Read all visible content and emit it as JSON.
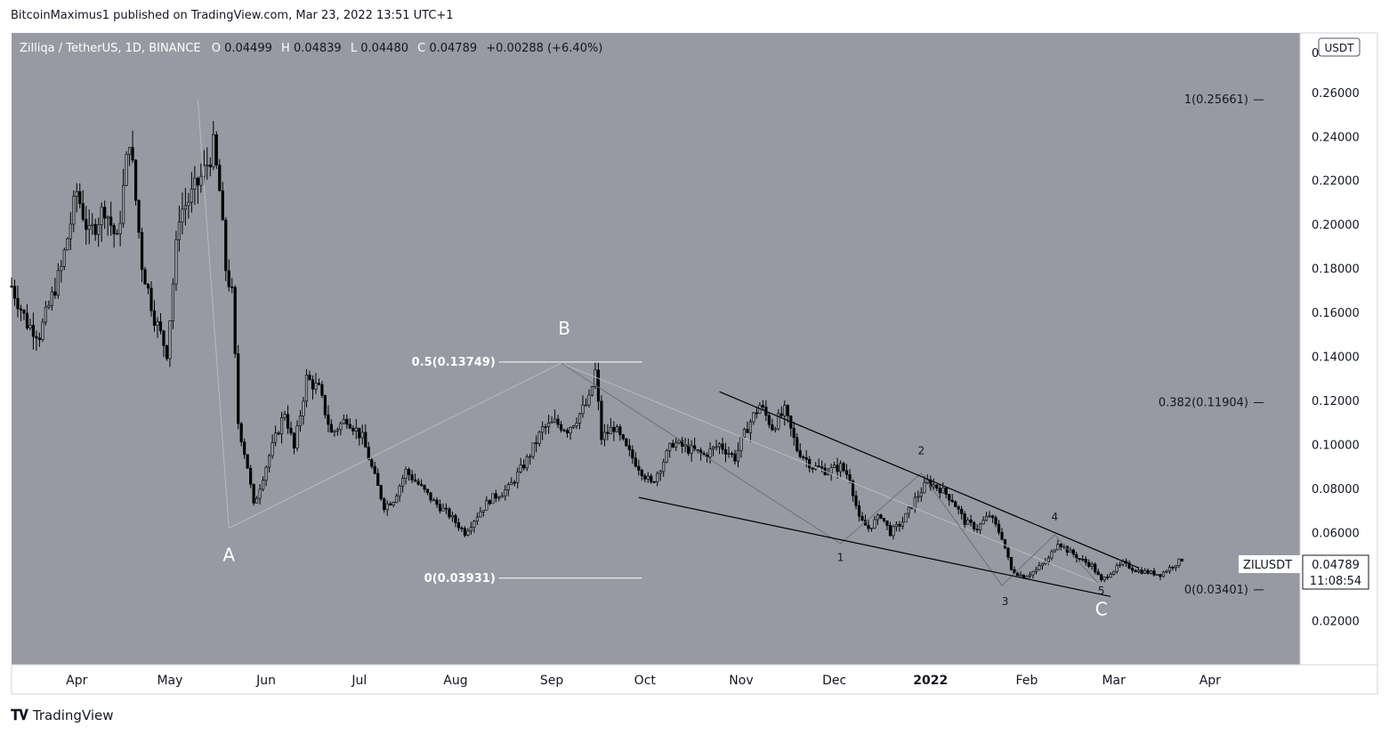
{
  "header": {
    "publisher_line": "BitcoinMaximus1 published on TradingView.com, Mar 23, 2022 13:51 UTC+1"
  },
  "legend": {
    "symbol": "Zilliqa / TetherUS, 1D, BINANCE",
    "o_label": "O",
    "o_value": "0.04499",
    "h_label": "H",
    "h_value": "0.04839",
    "l_label": "L",
    "l_value": "0.04480",
    "c_label": "C",
    "c_value": "0.04789",
    "change": "+0.00288 (+6.40%)"
  },
  "footer": {
    "brand": "TradingView"
  },
  "colors": {
    "plot_bg": "#979aa2",
    "candle": "#000000",
    "fib_line": "#ffffff",
    "wave_line": "#b9bbc0",
    "wave_line_dark": "#6e7076",
    "trendline": "#000000",
    "price_tag_bg": "#ffffff"
  },
  "chart_data": {
    "type": "candlestick",
    "symbol": "ZILUSDT",
    "x_range": [
      "2021-03-11",
      "2022-04-30"
    ],
    "ylim": [
      0.0,
      0.287
    ],
    "y_ticks": [
      "0.02000",
      "0.04000",
      "0.06000",
      "0.08000",
      "0.10000",
      "0.12000",
      "0.14000",
      "0.16000",
      "0.18000",
      "0.20000",
      "0.22000",
      "0.24000",
      "0.26000"
    ],
    "y_top_label": "0",
    "currency": "USDT",
    "x_ticks": [
      {
        "label": "Apr",
        "date": "2021-04-01"
      },
      {
        "label": "May",
        "date": "2021-05-01"
      },
      {
        "label": "Jun",
        "date": "2021-06-01"
      },
      {
        "label": "Jul",
        "date": "2021-07-01"
      },
      {
        "label": "Aug",
        "date": "2021-08-01"
      },
      {
        "label": "Sep",
        "date": "2021-09-01"
      },
      {
        "label": "Oct",
        "date": "2021-10-01"
      },
      {
        "label": "Nov",
        "date": "2021-11-01"
      },
      {
        "label": "Dec",
        "date": "2021-12-01"
      },
      {
        "label": "2022",
        "date": "2022-01-01"
      },
      {
        "label": "Feb",
        "date": "2022-02-01"
      },
      {
        "label": "Mar",
        "date": "2022-03-01"
      },
      {
        "label": "Apr",
        "date": "2022-04-01"
      }
    ],
    "price_path": [
      [
        "2021-03-11",
        0.172
      ],
      [
        "2021-03-16",
        0.155
      ],
      [
        "2021-03-20",
        0.15
      ],
      [
        "2021-03-27",
        0.18
      ],
      [
        "2021-04-01",
        0.215
      ],
      [
        "2021-04-05",
        0.195
      ],
      [
        "2021-04-10",
        0.208
      ],
      [
        "2021-04-14",
        0.192
      ],
      [
        "2021-04-18",
        0.24
      ],
      [
        "2021-04-22",
        0.182
      ],
      [
        "2021-04-26",
        0.158
      ],
      [
        "2021-04-30",
        0.142
      ],
      [
        "2021-05-04",
        0.205
      ],
      [
        "2021-05-08",
        0.213
      ],
      [
        "2021-05-12",
        0.224
      ],
      [
        "2021-05-15",
        0.235
      ],
      [
        "2021-05-17",
        0.215
      ],
      [
        "2021-05-19",
        0.18
      ],
      [
        "2021-05-21",
        0.168
      ],
      [
        "2021-05-23",
        0.11
      ],
      [
        "2021-05-26",
        0.09
      ],
      [
        "2021-05-28",
        0.072
      ],
      [
        "2021-06-02",
        0.095
      ],
      [
        "2021-06-07",
        0.115
      ],
      [
        "2021-06-10",
        0.098
      ],
      [
        "2021-06-14",
        0.13
      ],
      [
        "2021-06-18",
        0.125
      ],
      [
        "2021-06-22",
        0.105
      ],
      [
        "2021-06-27",
        0.112
      ],
      [
        "2021-07-02",
        0.103
      ],
      [
        "2021-07-06",
        0.085
      ],
      [
        "2021-07-09",
        0.072
      ],
      [
        "2021-07-12",
        0.075
      ],
      [
        "2021-07-16",
        0.088
      ],
      [
        "2021-07-20",
        0.082
      ],
      [
        "2021-07-25",
        0.074
      ],
      [
        "2021-07-30",
        0.068
      ],
      [
        "2021-08-04",
        0.06
      ],
      [
        "2021-08-08",
        0.068
      ],
      [
        "2021-08-12",
        0.075
      ],
      [
        "2021-08-18",
        0.08
      ],
      [
        "2021-08-24",
        0.093
      ],
      [
        "2021-08-29",
        0.107
      ],
      [
        "2021-09-02",
        0.11
      ],
      [
        "2021-09-06",
        0.107
      ],
      [
        "2021-09-09",
        0.112
      ],
      [
        "2021-09-13",
        0.12
      ],
      [
        "2021-09-15",
        0.133
      ],
      [
        "2021-09-17",
        0.103
      ],
      [
        "2021-09-21",
        0.108
      ],
      [
        "2021-09-25",
        0.098
      ],
      [
        "2021-09-30",
        0.088
      ],
      [
        "2021-10-03",
        0.082
      ],
      [
        "2021-10-06",
        0.09
      ],
      [
        "2021-10-10",
        0.101
      ],
      [
        "2021-10-15",
        0.098
      ],
      [
        "2021-10-20",
        0.095
      ],
      [
        "2021-10-25",
        0.1
      ],
      [
        "2021-10-30",
        0.094
      ],
      [
        "2021-11-03",
        0.108
      ],
      [
        "2021-11-07",
        0.118
      ],
      [
        "2021-11-11",
        0.108
      ],
      [
        "2021-11-15",
        0.115
      ],
      [
        "2021-11-19",
        0.098
      ],
      [
        "2021-11-24",
        0.09
      ],
      [
        "2021-11-29",
        0.088
      ],
      [
        "2021-12-03",
        0.09
      ],
      [
        "2021-12-06",
        0.085
      ],
      [
        "2021-12-09",
        0.066
      ],
      [
        "2021-12-12",
        0.062
      ],
      [
        "2021-12-16",
        0.068
      ],
      [
        "2021-12-19",
        0.06
      ],
      [
        "2021-12-23",
        0.065
      ],
      [
        "2021-12-27",
        0.075
      ],
      [
        "2021-12-31",
        0.083
      ],
      [
        "2022-01-04",
        0.08
      ],
      [
        "2022-01-08",
        0.075
      ],
      [
        "2022-01-12",
        0.065
      ],
      [
        "2022-01-16",
        0.062
      ],
      [
        "2022-01-20",
        0.068
      ],
      [
        "2022-01-24",
        0.058
      ],
      [
        "2022-01-27",
        0.043
      ],
      [
        "2022-01-31",
        0.04
      ],
      [
        "2022-02-04",
        0.043
      ],
      [
        "2022-02-08",
        0.048
      ],
      [
        "2022-02-11",
        0.056
      ],
      [
        "2022-02-14",
        0.052
      ],
      [
        "2022-02-18",
        0.048
      ],
      [
        "2022-02-22",
        0.045
      ],
      [
        "2022-02-25",
        0.038
      ],
      [
        "2022-02-28",
        0.042
      ],
      [
        "2022-03-04",
        0.046
      ],
      [
        "2022-03-08",
        0.043
      ],
      [
        "2022-03-12",
        0.042
      ],
      [
        "2022-03-16",
        0.041
      ],
      [
        "2022-03-20",
        0.045
      ],
      [
        "2022-03-23",
        0.0479
      ]
    ],
    "last_price": {
      "label": "ZILUSDT",
      "value": "0.04789",
      "countdown": "11:08:54"
    },
    "fib_levels": [
      {
        "label": "1(0.25661)",
        "value": 0.25661
      },
      {
        "label": "0.382(0.11904)",
        "value": 0.11904
      },
      {
        "label": "0(0.03401)",
        "value": 0.03401
      }
    ],
    "fib_local": [
      {
        "label": "0.5(0.13749)",
        "value": 0.13749,
        "from": "2021-08-15",
        "to": "2021-09-30"
      },
      {
        "label": "0(0.03931)",
        "value": 0.03931,
        "from": "2021-08-15",
        "to": "2021-09-30"
      }
    ],
    "abc_path": [
      {
        "date": "2021-05-10",
        "value": 0.257
      },
      {
        "date": "2021-05-20",
        "value": 0.062
      },
      {
        "date": "2021-09-04",
        "value": 0.137
      },
      {
        "date": "2022-02-24",
        "value": 0.037
      }
    ],
    "abc_labels": [
      {
        "label": "A",
        "date": "2021-05-20",
        "value": 0.047
      },
      {
        "label": "B",
        "date": "2021-09-05",
        "value": 0.15
      },
      {
        "label": "C",
        "date": "2022-02-25",
        "value": 0.0225
      }
    ],
    "wave_path": [
      {
        "date": "2021-09-04",
        "value": 0.137
      },
      {
        "date": "2021-12-03",
        "value": 0.055
      },
      {
        "date": "2021-12-29",
        "value": 0.087
      },
      {
        "date": "2022-01-24",
        "value": 0.036
      },
      {
        "date": "2022-02-10",
        "value": 0.059
      },
      {
        "date": "2022-02-24",
        "value": 0.037
      }
    ],
    "wave_labels": [
      {
        "label": "1",
        "date": "2021-12-03",
        "value": 0.047
      },
      {
        "label": "2",
        "date": "2021-12-29",
        "value": 0.0955
      },
      {
        "label": "3",
        "date": "2022-01-25",
        "value": 0.027
      },
      {
        "label": "4",
        "date": "2022-02-10",
        "value": 0.0655
      },
      {
        "label": "5",
        "date": "2022-02-25",
        "value": 0.032
      }
    ],
    "trendlines": [
      {
        "from": {
          "date": "2021-10-25",
          "value": 0.124
        },
        "to": {
          "date": "2022-03-09",
          "value": 0.044
        }
      },
      {
        "from": {
          "date": "2021-09-29",
          "value": 0.076
        },
        "to": {
          "date": "2022-02-28",
          "value": 0.031
        }
      }
    ]
  }
}
